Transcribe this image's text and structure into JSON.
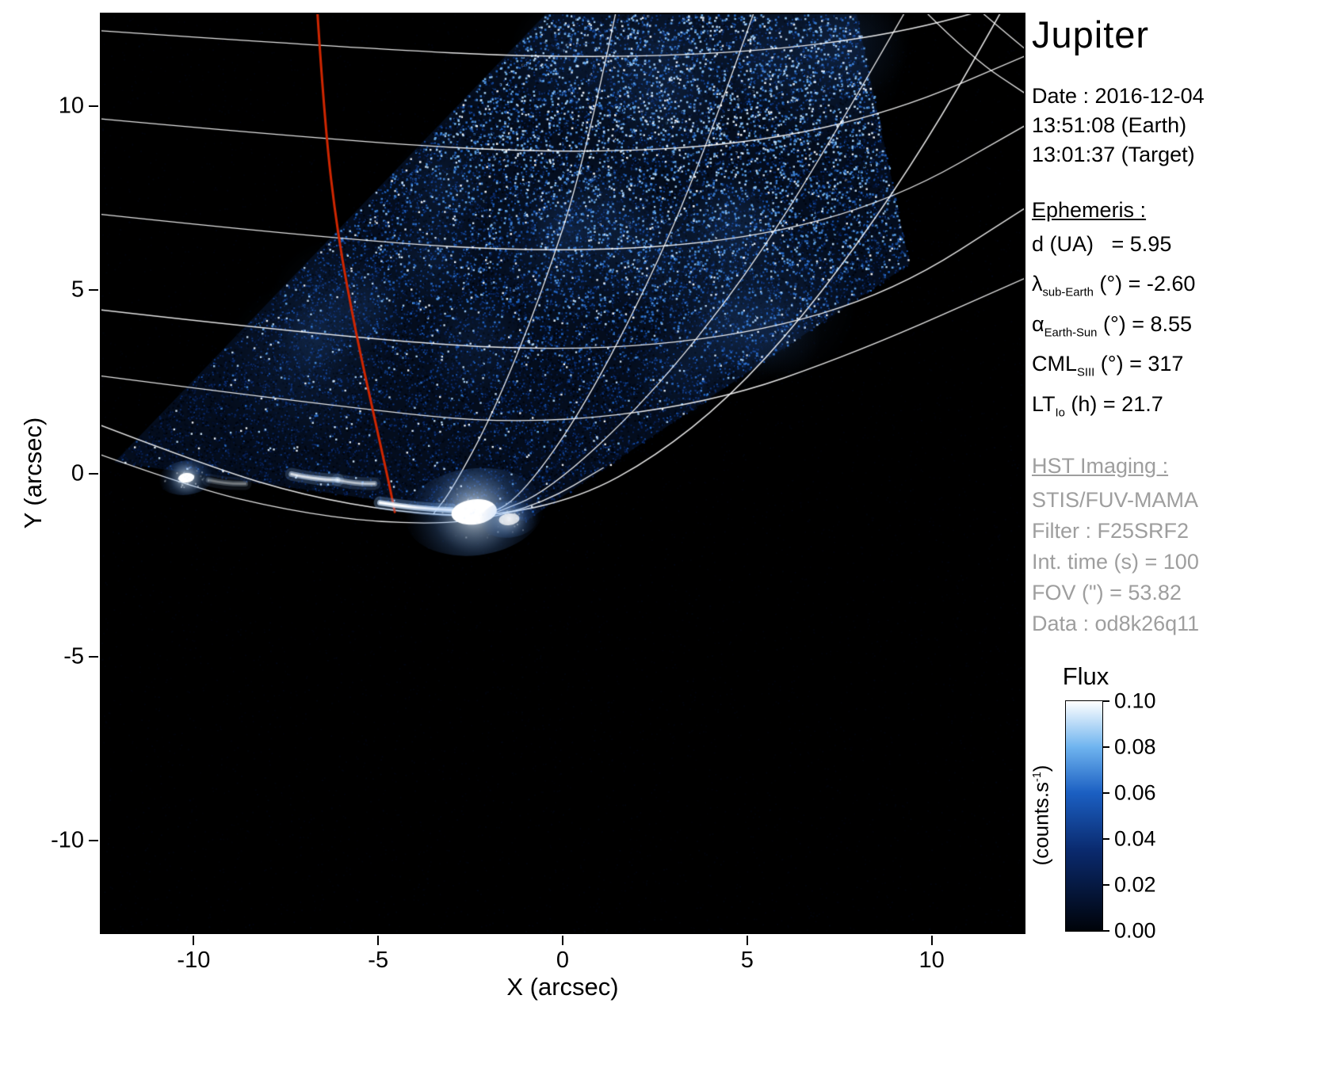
{
  "panel": {
    "title": "Jupiter",
    "date_line1": "Date : 2016-12-04",
    "date_line2": "13:51:08 (Earth)",
    "date_line3": "13:01:37 (Target)",
    "ephemeris": {
      "heading": "Ephemeris :",
      "lines": [
        {
          "pre": "d (UA)",
          "sub": "",
          "post": "   = 5.95"
        },
        {
          "pre": "λ",
          "sub": "sub-Earth",
          "post": " (°) = -2.60"
        },
        {
          "pre": "α",
          "sub": "Earth-Sun",
          "post": " (°) = 8.55"
        },
        {
          "pre": "CML",
          "sub": "SIII",
          "post": " (°) = 317"
        },
        {
          "pre": "LT",
          "sub": "Io",
          "post": " (h) = 21.7"
        }
      ]
    },
    "hst": {
      "heading": "HST Imaging :",
      "lines": [
        "STIS/FUV-MAMA",
        "Filter : F25SRF2",
        "Int. time (s) = 100",
        "FOV (\") = 53.82",
        "Data : od8k26q11"
      ]
    }
  },
  "axes": {
    "xlabel": "X (arcsec)",
    "ylabel": "Y (arcsec)"
  },
  "colorbar": {
    "title": "Flux",
    "unit_pre": "(counts.s",
    "unit_sup": "-1",
    "unit_post": ")",
    "tick_labels": [
      "0.10",
      "0.08",
      "0.06",
      "0.04",
      "0.02",
      "0.00"
    ]
  },
  "chart_data": {
    "type": "heatmap",
    "title": "Jupiter",
    "xlabel": "X (arcsec)",
    "ylabel": "Y (arcsec)",
    "xlim": [
      -12.5,
      12.5
    ],
    "ylim": [
      -12.5,
      12.5
    ],
    "x_ticks": [
      -10,
      -5,
      0,
      5,
      10
    ],
    "y_ticks": [
      -10,
      -5,
      0,
      5,
      10
    ],
    "background": "#000000",
    "flux_range": [
      0.0,
      0.1
    ],
    "colormap_stops": [
      {
        "t": 0.0,
        "color": "#000309"
      },
      {
        "t": 0.35,
        "color": "#0a2a6e"
      },
      {
        "t": 0.6,
        "color": "#1b5fc2"
      },
      {
        "t": 0.8,
        "color": "#6fb4ef"
      },
      {
        "t": 1.0,
        "color": "#ffffff"
      }
    ],
    "detector_polygon": [
      [
        -12.15,
        0.3
      ],
      [
        0.3,
        13.3
      ],
      [
        7.8,
        13.3
      ],
      [
        9.4,
        5.7
      ],
      [
        -1.0,
        -1.3
      ]
    ],
    "graticule_color": "#ffffff",
    "graticule_curves": [
      {
        "w": 1.4,
        "pts": [
          [
            -12.5,
            12.05
          ],
          [
            -6,
            11.6
          ],
          [
            0,
            11.3
          ],
          [
            5,
            11.45
          ],
          [
            9,
            11.95
          ],
          [
            12.5,
            12.9
          ]
        ]
      },
      {
        "w": 1.4,
        "pts": [
          [
            -12.5,
            9.65
          ],
          [
            -6,
            9.05
          ],
          [
            0,
            8.7
          ],
          [
            5,
            8.95
          ],
          [
            9,
            9.85
          ],
          [
            12.5,
            11.35
          ]
        ]
      },
      {
        "w": 1.4,
        "pts": [
          [
            -12.5,
            7.05
          ],
          [
            -6,
            6.35
          ],
          [
            0,
            6.0
          ],
          [
            5,
            6.35
          ],
          [
            9,
            7.45
          ],
          [
            12.5,
            9.45
          ]
        ]
      },
      {
        "w": 1.4,
        "pts": [
          [
            -12.5,
            4.45
          ],
          [
            -6,
            3.7
          ],
          [
            0,
            3.3
          ],
          [
            5,
            3.75
          ],
          [
            9,
            4.95
          ],
          [
            12.5,
            7.2
          ]
        ]
      },
      {
        "w": 1.4,
        "pts": [
          [
            -12.5,
            2.65
          ],
          [
            -6,
            1.8
          ],
          [
            -1,
            1.3
          ],
          [
            4,
            1.9
          ],
          [
            8,
            3.3
          ],
          [
            12.5,
            5.3
          ]
        ]
      },
      {
        "w": 1.6,
        "pts": [
          [
            -12.5,
            1.3
          ],
          [
            -9.5,
            0.15
          ],
          [
            -7,
            -0.6
          ],
          [
            -4.5,
            -1.05
          ],
          [
            -2,
            -1.2
          ],
          [
            0.5,
            -0.65
          ],
          [
            2.5,
            0.45
          ],
          [
            4.5,
            2.05
          ],
          [
            6.5,
            4.25
          ],
          [
            8.5,
            6.95
          ],
          [
            10.3,
            9.75
          ],
          [
            11.9,
            12.6
          ]
        ]
      },
      {
        "w": 1.3,
        "pts": [
          [
            -12.5,
            0.5
          ],
          [
            -10,
            -0.4
          ],
          [
            -7.5,
            -1.0
          ],
          [
            -5,
            -1.35
          ],
          [
            -2.5,
            -1.35
          ],
          [
            -0.5,
            -0.8
          ],
          [
            1.1,
            0.15
          ]
        ]
      },
      {
        "w": 1.3,
        "pts": [
          [
            1.45,
            12.6
          ],
          [
            0.6,
            8.5
          ],
          [
            -0.6,
            4.8
          ],
          [
            -1.9,
            1.6
          ],
          [
            -3.0,
            -0.45
          ],
          [
            -3.5,
            -1.1
          ]
        ]
      },
      {
        "w": 1.3,
        "pts": [
          [
            5.2,
            12.6
          ],
          [
            3.8,
            8.6
          ],
          [
            2.2,
            4.9
          ],
          [
            0.4,
            1.5
          ],
          [
            -1.2,
            -0.7
          ],
          [
            -2.1,
            -1.15
          ]
        ]
      },
      {
        "w": 1.3,
        "pts": [
          [
            9.3,
            12.6
          ],
          [
            7.3,
            9.1
          ],
          [
            5.0,
            5.4
          ],
          [
            2.3,
            2.0
          ],
          [
            -0.4,
            -0.5
          ],
          [
            -1.9,
            -1.1
          ]
        ]
      },
      {
        "w": 1.3,
        "pts": [
          [
            9.8,
            12.6
          ],
          [
            11.1,
            11.3
          ],
          [
            12.6,
            10.3
          ]
        ]
      },
      {
        "w": 1.3,
        "pts": [
          [
            11.3,
            12.6
          ],
          [
            12.0,
            12.0
          ],
          [
            12.6,
            11.5
          ]
        ]
      }
    ],
    "io_track": {
      "color": "#cf2600",
      "width": 3,
      "points": [
        [
          -6.65,
          12.6
        ],
        [
          -6.45,
          9.5
        ],
        [
          -6.1,
          6.5
        ],
        [
          -5.6,
          3.8
        ],
        [
          -5.1,
          1.5
        ],
        [
          -4.7,
          -0.3
        ],
        [
          -4.55,
          -1.05
        ]
      ]
    },
    "aurora": {
      "spots": [
        {
          "x": -10.2,
          "y": -0.12,
          "rx": 0.22,
          "ry": 0.13,
          "glow": 0.75,
          "intensity": 1.0
        },
        {
          "x": -2.4,
          "y": -1.05,
          "rx": 0.62,
          "ry": 0.34,
          "glow": 1.9,
          "intensity": 1.0
        },
        {
          "x": -1.45,
          "y": -1.25,
          "rx": 0.28,
          "ry": 0.16,
          "glow": 0.8,
          "intensity": 0.75
        }
      ],
      "arcs": [
        {
          "from": [
            -7.35,
            -0.02
          ],
          "to": [
            -6.1,
            -0.18
          ],
          "intensity": 0.7
        },
        {
          "from": [
            -6.1,
            -0.18
          ],
          "to": [
            -5.1,
            -0.28
          ],
          "intensity": 0.55
        },
        {
          "from": [
            -4.95,
            -0.8
          ],
          "to": [
            -3.0,
            -1.0
          ],
          "intensity": 1.0
        },
        {
          "from": [
            -9.6,
            -0.18
          ],
          "to": [
            -8.6,
            -0.28
          ],
          "intensity": 0.3
        }
      ]
    },
    "noise": {
      "count": 48000,
      "sparkle_count": 2200,
      "background_count": 7000,
      "clump_count": 24
    }
  }
}
